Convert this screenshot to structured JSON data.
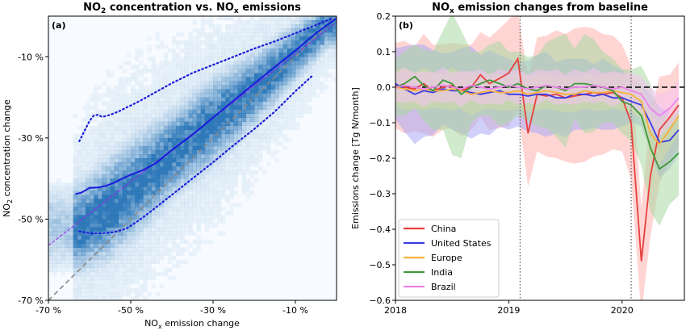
{
  "chart_data": [
    {
      "type": "heatmap",
      "panel_label": "(a)",
      "title_parts": [
        "NO",
        "2",
        " concentration vs. NO",
        "x",
        " emissions"
      ],
      "xlabel_parts": [
        "NO",
        "x",
        " emission change"
      ],
      "ylabel_parts": [
        "NO",
        "2",
        " concentration change"
      ],
      "xlim": [
        -70,
        0
      ],
      "ylim": [
        -70,
        0
      ],
      "xticks": [
        -70,
        -50,
        -30,
        -10
      ],
      "xtick_labels": [
        "-70 %",
        "-50 %",
        "-30 %",
        "-10 %"
      ],
      "yticks": [
        -70,
        -50,
        -30,
        -10
      ],
      "ytick_labels": [
        "-70 %",
        "-50 %",
        "-30 %",
        "-10 %"
      ],
      "grid": false,
      "colors": {
        "density": "#1f6fb4",
        "median": "#1a1adc",
        "one_to_one": "#888888",
        "fit": "#a020f0"
      },
      "density_ridge": {
        "x": [
          -62,
          -55,
          -50,
          -40,
          -30,
          -20,
          -10,
          -2
        ],
        "y": [
          -52,
          -47,
          -43,
          -34,
          -26,
          -18,
          -9,
          -2
        ],
        "spread": [
          6,
          7,
          7,
          6,
          6,
          5,
          4,
          3
        ]
      },
      "median_line": {
        "x": [
          -63.5,
          -62,
          -60,
          -58,
          -56,
          -54,
          -52,
          -50,
          -47,
          -44,
          -40,
          -35,
          -30,
          -25,
          -20,
          -15,
          -10,
          -5,
          0
        ],
        "y": [
          -43.8,
          -43.5,
          -42.3,
          -42.2,
          -41.8,
          -41.0,
          -40.0,
          -39.1,
          -37.9,
          -36.3,
          -33.0,
          -29.2,
          -25.0,
          -20.8,
          -16.6,
          -12.5,
          -8.5,
          -4.2,
          -0.5
        ]
      },
      "upper_band": {
        "x": [
          -62.5,
          -61,
          -60,
          -59,
          -58,
          -57,
          -56,
          -55,
          -53,
          -51,
          -48,
          -45,
          -40,
          -35,
          -30,
          -25,
          -20,
          -15,
          -10,
          -5,
          -1
        ],
        "y": [
          -30.8,
          -27.8,
          -25.8,
          -24.5,
          -24.3,
          -24.8,
          -24.6,
          -24.3,
          -23.5,
          -22.5,
          -21.0,
          -19.3,
          -16.5,
          -14.0,
          -12.0,
          -10.0,
          -8.0,
          -6.2,
          -4.2,
          -2.2,
          -0.5
        ]
      },
      "lower_band": {
        "x": [
          -62.5,
          -60,
          -57,
          -54,
          -51,
          -48,
          -45,
          -40,
          -35,
          -30,
          -25,
          -20,
          -15,
          -10,
          -6
        ],
        "y": [
          -53.0,
          -53.5,
          -53.5,
          -53.2,
          -52.3,
          -50.3,
          -48.0,
          -44.0,
          -40.0,
          -36.0,
          -31.8,
          -27.8,
          -23.5,
          -18.5,
          -14.8
        ]
      },
      "one_to_one": {
        "x": [
          -70,
          0
        ],
        "y": [
          -70,
          0
        ]
      },
      "fit_line": {
        "x": [
          -70,
          0
        ],
        "y": [
          -56.5,
          -1.5
        ]
      }
    },
    {
      "type": "line",
      "panel_label": "(b)",
      "title_parts": [
        "NO",
        "x",
        " emission changes from baseline"
      ],
      "ylabel": "Emissions change [Tg N/month]",
      "xlim": [
        2018.0,
        2020.55
      ],
      "ylim": [
        -0.6,
        0.2
      ],
      "xticks": [
        2018,
        2019,
        2020
      ],
      "xtick_labels": [
        "2018",
        "2019",
        "2020"
      ],
      "yticks": [
        -0.6,
        -0.5,
        -0.4,
        -0.3,
        -0.2,
        -0.1,
        0.0,
        0.1,
        0.2
      ],
      "ytick_labels": [
        "−0.6",
        "−0.5",
        "−0.4",
        "−0.3",
        "−0.2",
        "−0.1",
        "0.0",
        "0.1",
        "0.2"
      ],
      "vlines": [
        2019.1,
        2020.08
      ],
      "hline": 0,
      "legend_position": "lower-left",
      "x": [
        2018.0,
        2018.08,
        2018.17,
        2018.25,
        2018.33,
        2018.42,
        2018.5,
        2018.58,
        2018.67,
        2018.75,
        2018.83,
        2018.92,
        2019.0,
        2019.08,
        2019.17,
        2019.25,
        2019.33,
        2019.42,
        2019.5,
        2019.58,
        2019.67,
        2019.75,
        2019.83,
        2019.92,
        2020.0,
        2020.08,
        2020.17,
        2020.25,
        2020.33,
        2020.42,
        2020.5
      ],
      "series": [
        {
          "name": "China",
          "color": "#e8403c",
          "band_color": "#ffb3ae",
          "values": [
            0.005,
            0.0,
            -0.005,
            0.01,
            -0.01,
            0.0,
            0.005,
            -0.01,
            0.0,
            0.035,
            0.01,
            0.025,
            0.04,
            0.08,
            -0.13,
            -0.02,
            -0.025,
            -0.02,
            -0.03,
            -0.025,
            -0.02,
            -0.015,
            -0.02,
            -0.015,
            -0.03,
            -0.1,
            -0.49,
            -0.25,
            -0.12,
            -0.085,
            -0.05
          ],
          "spread": [
            0.12,
            0.13,
            0.12,
            0.14,
            0.13,
            0.12,
            0.12,
            0.13,
            0.12,
            0.12,
            0.13,
            0.14,
            0.15,
            0.14,
            0.15,
            0.16,
            0.17,
            0.18,
            0.18,
            0.19,
            0.19,
            0.18,
            0.17,
            0.16,
            0.15,
            0.16,
            0.15,
            0.17,
            0.15,
            0.12,
            0.12
          ]
        },
        {
          "name": "United States",
          "color": "#3b3be6",
          "band_color": "#a9a9f5",
          "values": [
            0.01,
            -0.005,
            -0.02,
            -0.01,
            -0.015,
            -0.005,
            -0.01,
            -0.01,
            -0.015,
            -0.02,
            -0.015,
            -0.01,
            -0.02,
            -0.02,
            -0.025,
            -0.02,
            -0.02,
            -0.03,
            -0.03,
            -0.02,
            -0.02,
            -0.025,
            -0.02,
            -0.03,
            -0.03,
            -0.04,
            -0.05,
            -0.1,
            -0.155,
            -0.15,
            -0.12
          ],
          "spread": [
            0.1,
            0.12,
            0.14,
            0.13,
            0.12,
            0.1,
            0.11,
            0.12,
            0.13,
            0.11,
            0.12,
            0.1,
            0.1,
            0.09,
            0.1,
            0.11,
            0.12,
            0.1,
            0.11,
            0.1,
            0.1,
            0.09,
            0.1,
            0.09,
            0.08,
            0.06,
            0.06,
            0.08,
            0.1,
            0.08,
            0.07
          ]
        },
        {
          "name": "Europe",
          "color": "#f7b23d",
          "band_color": "#ffe0a8",
          "values": [
            0.0,
            -0.005,
            -0.01,
            -0.005,
            -0.01,
            -0.01,
            -0.005,
            -0.01,
            -0.02,
            -0.015,
            -0.01,
            -0.015,
            -0.015,
            -0.01,
            -0.02,
            -0.015,
            -0.01,
            -0.015,
            -0.02,
            -0.02,
            -0.01,
            -0.015,
            -0.015,
            -0.01,
            -0.015,
            -0.02,
            -0.04,
            -0.13,
            -0.16,
            -0.12,
            -0.08
          ],
          "spread": [
            0.05,
            0.06,
            0.05,
            0.06,
            0.05,
            0.05,
            0.06,
            0.05,
            0.06,
            0.05,
            0.05,
            0.05,
            0.05,
            0.05,
            0.05,
            0.05,
            0.05,
            0.05,
            0.05,
            0.05,
            0.05,
            0.05,
            0.05,
            0.05,
            0.05,
            0.05,
            0.05,
            0.06,
            0.06,
            0.05,
            0.05
          ]
        },
        {
          "name": "India",
          "color": "#3e9a3a",
          "band_color": "#a8d8a2",
          "values": [
            0.0,
            0.01,
            0.03,
            0.005,
            -0.01,
            0.02,
            0.01,
            -0.02,
            0.0,
            0.01,
            0.02,
            0.01,
            0.0,
            0.01,
            -0.005,
            -0.01,
            0.005,
            0.0,
            -0.01,
            0.01,
            0.01,
            0.005,
            0.0,
            -0.01,
            -0.04,
            -0.05,
            -0.08,
            -0.17,
            -0.23,
            -0.21,
            -0.185
          ],
          "spread": [
            0.08,
            0.09,
            0.09,
            0.1,
            0.11,
            0.14,
            0.2,
            0.18,
            0.1,
            0.09,
            0.1,
            0.12,
            0.1,
            0.09,
            0.09,
            0.1,
            0.12,
            0.14,
            0.16,
            0.1,
            0.14,
            0.13,
            0.1,
            0.09,
            0.09,
            0.1,
            0.14,
            0.18,
            0.16,
            0.12,
            0.12
          ]
        },
        {
          "name": "Brazil",
          "color": "#ee82ee",
          "band_color": "#f7c2f3",
          "values": [
            0.0,
            0.005,
            0.0,
            -0.005,
            0.0,
            0.005,
            0.0,
            -0.005,
            0.005,
            0.0,
            -0.005,
            0.0,
            0.005,
            0.0,
            -0.005,
            0.0,
            0.005,
            0.0,
            -0.005,
            0.0,
            0.0,
            0.005,
            0.0,
            -0.005,
            0.0,
            -0.01,
            -0.02,
            -0.06,
            -0.08,
            -0.06,
            -0.03
          ],
          "spread": [
            0.04,
            0.05,
            0.04,
            0.05,
            0.04,
            0.05,
            0.04,
            0.05,
            0.04,
            0.05,
            0.04,
            0.05,
            0.04,
            0.05,
            0.04,
            0.05,
            0.04,
            0.05,
            0.04,
            0.05,
            0.04,
            0.05,
            0.04,
            0.05,
            0.04,
            0.05,
            0.05,
            0.06,
            0.06,
            0.05,
            0.05
          ]
        }
      ]
    }
  ]
}
